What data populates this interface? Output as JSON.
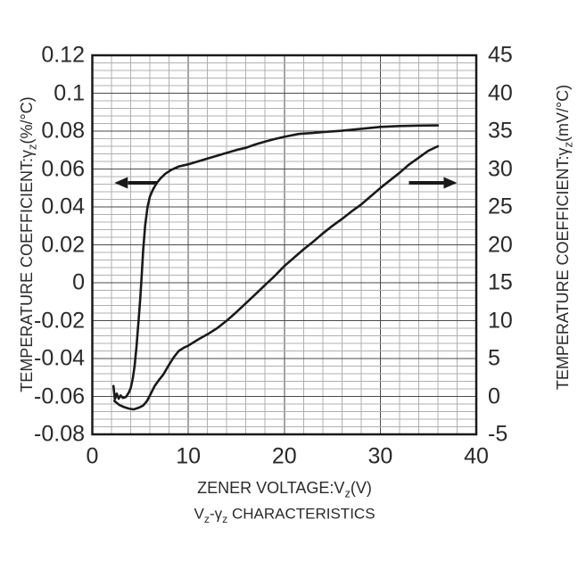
{
  "chart_data": {
    "type": "line",
    "title": "V[z]-γ[z] CHARACTERISTICS",
    "xlabel": "ZENER VOLTAGE:V[z](V)",
    "ylabel_left": "TEMPERATURE COEFFICIENT:γ[z](%/°C)",
    "ylabel_right": "TEMPERATURE COEFFICIENT:γ[z](mV/°C)",
    "x_range": [
      0,
      40
    ],
    "yleft_range": [
      -0.08,
      0.12
    ],
    "yright_range": [
      -5,
      45
    ],
    "grid": {
      "x_minor": 2,
      "x_major": 10,
      "yleft_minor": 0.004,
      "yleft_major": 0.02,
      "visible": true
    },
    "x_ticks": [
      "0",
      "10",
      "20",
      "30",
      "40"
    ],
    "yleft_ticks": [
      "0.12",
      "0.1",
      "0.08",
      "0.06",
      "0.04",
      "0.02",
      "0",
      "-0.02",
      "-0.04",
      "-0.06",
      "-0.08"
    ],
    "yright_ticks": [
      "45",
      "40",
      "35",
      "30",
      "25",
      "20",
      "15",
      "10",
      "5",
      "0",
      "-5"
    ],
    "series": [
      {
        "name": "temperature-coefficient-percent-per-degC",
        "axis": "left",
        "x": [
          2.2,
          2.35,
          2.55,
          2.75,
          2.95,
          3.2,
          3.5,
          3.8,
          4.0,
          4.2,
          4.4,
          4.6,
          4.8,
          5.0,
          5.15,
          5.3,
          5.5,
          5.75,
          6.0,
          6.3,
          6.7,
          7.1,
          7.6,
          8.2,
          9.0,
          10,
          11,
          12,
          13,
          14,
          15,
          16,
          17,
          18,
          19,
          20,
          21.5,
          23,
          24,
          26,
          28,
          30,
          32,
          34,
          36
        ],
        "y": [
          -0.0545,
          -0.0615,
          -0.0585,
          -0.0612,
          -0.0595,
          -0.0608,
          -0.0603,
          -0.058,
          -0.0555,
          -0.051,
          -0.044,
          -0.034,
          -0.021,
          -0.008,
          0.004,
          0.017,
          0.03,
          0.04,
          0.0455,
          0.049,
          0.0525,
          0.055,
          0.0575,
          0.0595,
          0.0613,
          0.0625,
          0.064,
          0.0655,
          0.067,
          0.0685,
          0.07,
          0.0712,
          0.073,
          0.0745,
          0.0758,
          0.077,
          0.0785,
          0.079,
          0.0795,
          0.0802,
          0.0812,
          0.0822,
          0.0827,
          0.0829,
          0.083
        ]
      },
      {
        "name": "temperature-coefficient-mV-per-degC",
        "axis": "right",
        "x": [
          2.3,
          2.8,
          3.3,
          3.8,
          4.3,
          4.8,
          5.3,
          5.7,
          6.1,
          6.5,
          6.9,
          7.4,
          8.0,
          8.5,
          9.0,
          9.5,
          10,
          11,
          12,
          13,
          14,
          15,
          16,
          17,
          18,
          19,
          20,
          21,
          22,
          23,
          24,
          25,
          26,
          27,
          28,
          29,
          30,
          31,
          32,
          33,
          34,
          35,
          36
        ],
        "y": [
          -0.6,
          -1.1,
          -1.4,
          -1.6,
          -1.7,
          -1.5,
          -1.2,
          -0.6,
          0.4,
          1.4,
          2.1,
          2.9,
          4.2,
          5.2,
          6.0,
          6.4,
          6.7,
          7.5,
          8.2,
          9.0,
          10.0,
          11.1,
          12.3,
          13.5,
          14.7,
          15.9,
          17.2,
          18.3,
          19.4,
          20.4,
          21.5,
          22.5,
          23.4,
          24.4,
          25.3,
          26.4,
          27.5,
          28.5,
          29.5,
          30.6,
          31.5,
          32.4,
          33.0
        ]
      }
    ],
    "annotations": [
      {
        "type": "arrow",
        "direction": "left",
        "meaning": "upper curve reads left axis",
        "axis": "left",
        "y": 0.0527,
        "x_tail": 6.8,
        "x_tip": 2.3
      },
      {
        "type": "arrow",
        "direction": "right",
        "meaning": "lower curve reads right axis",
        "axis": "left",
        "y": 0.0527,
        "x_tail": 33.0,
        "x_tip": 38.0
      }
    ],
    "colors": {
      "background": "#ffffff",
      "text": "#2a2a2a",
      "frame": "#1a1a1a",
      "grid_minor": "#b0b0b0",
      "grid_major": "#4a4a4a",
      "curve": "#1a1a1a"
    },
    "legend": "none"
  }
}
